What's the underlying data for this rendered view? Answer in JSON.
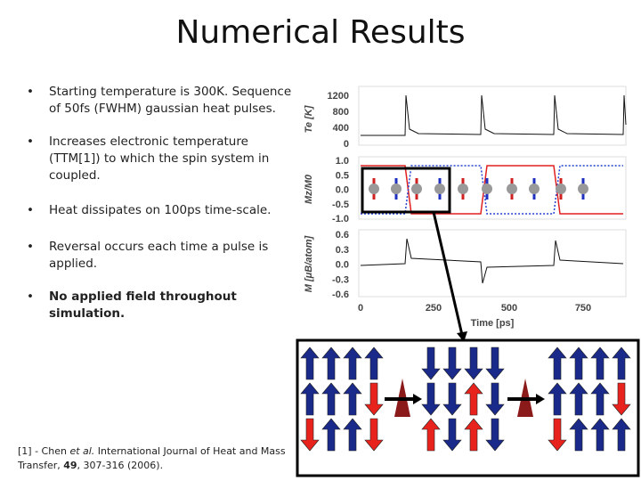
{
  "header": {
    "title": "Numerical Results"
  },
  "bullets": [
    {
      "lines": [
        "Starting temperature is 300K. Sequence",
        "of 50fs (FWHM) gaussian heat pulses."
      ],
      "bold": false
    },
    {
      "lines": [
        "Increases electronic temperature",
        "(TTM[1]) to which the spin system in",
        "coupled."
      ],
      "bold": false
    },
    {
      "lines": [
        "Heat dissipates on 100ps time-scale."
      ],
      "bold": false
    },
    {
      "lines": [
        "Reversal occurs each time a pulse is",
        "applied."
      ],
      "bold": false
    },
    {
      "lines": [
        "No applied field throughout",
        "simulation."
      ],
      "bold": true
    }
  ],
  "bullet_symbol": "•",
  "footnote": {
    "prefix": "[1] - Chen ",
    "italic": "et al.",
    "rest": " International Journal of Heat and Mass",
    "line2_start": "Transfer, ",
    "volume": "49",
    "line2_end": ", 307-316 (2006)."
  },
  "figure": {
    "panels": [
      {
        "ylabel": "Te [K]",
        "yticks": [
          "1200",
          "800",
          "400",
          "0"
        ]
      },
      {
        "ylabel": "Mz/M0",
        "yticks": [
          "1.0",
          "0.5",
          "0.0",
          "-0.5",
          "-1.0"
        ]
      },
      {
        "ylabel": "M [μB/atom]",
        "yticks": [
          "0.6",
          "0.3",
          "0.0",
          "-0.3",
          "-0.6"
        ]
      }
    ],
    "xticks": [
      "0",
      "250",
      "500",
      "750"
    ],
    "xlabel": "Time [ps]"
  }
}
